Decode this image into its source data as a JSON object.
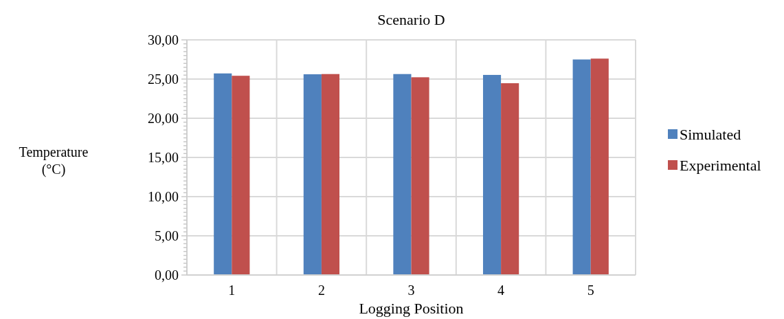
{
  "chart_data": {
    "type": "bar",
    "title": "Scenario D",
    "xlabel": "Logging Position",
    "ylabel": "Temperature (°C)",
    "categories": [
      "1",
      "2",
      "3",
      "4",
      "5"
    ],
    "series": [
      {
        "name": "Simulated",
        "color": "#4f81bd",
        "values": [
          25.72,
          25.61,
          25.64,
          25.53,
          27.5
        ]
      },
      {
        "name": "Experimental",
        "color": "#c0504d",
        "values": [
          25.42,
          25.64,
          25.23,
          24.47,
          27.61
        ]
      }
    ],
    "ylim": [
      0,
      30
    ],
    "yticks": [
      {
        "value": 0,
        "label": "0,00"
      },
      {
        "value": 0.5,
        "label": null
      },
      {
        "value": 1,
        "label": null
      },
      {
        "value": 1.5,
        "label": null
      },
      {
        "value": 2,
        "label": null
      },
      {
        "value": 2.5,
        "label": null
      },
      {
        "value": 3,
        "label": null
      },
      {
        "value": 3.5,
        "label": null
      },
      {
        "value": 4,
        "label": null
      },
      {
        "value": 4.5,
        "label": null
      },
      {
        "value": 5,
        "label": "5,00"
      },
      {
        "value": 5.5,
        "label": null
      },
      {
        "value": 6,
        "label": null
      },
      {
        "value": 6.5,
        "label": null
      },
      {
        "value": 7,
        "label": null
      },
      {
        "value": 7.5,
        "label": null
      },
      {
        "value": 8,
        "label": null
      },
      {
        "value": 8.5,
        "label": null
      },
      {
        "value": 9,
        "label": null
      },
      {
        "value": 9.5,
        "label": null
      },
      {
        "value": 10,
        "label": "10,00"
      },
      {
        "value": 10.5,
        "label": null
      },
      {
        "value": 11,
        "label": null
      },
      {
        "value": 11.5,
        "label": null
      },
      {
        "value": 12,
        "label": null
      },
      {
        "value": 12.5,
        "label": null
      },
      {
        "value": 13,
        "label": null
      },
      {
        "value": 13.5,
        "label": null
      },
      {
        "value": 14,
        "label": null
      },
      {
        "value": 14.5,
        "label": null
      },
      {
        "value": 15,
        "label": "15,00"
      },
      {
        "value": 15.5,
        "label": null
      },
      {
        "value": 16,
        "label": null
      },
      {
        "value": 16.5,
        "label": null
      },
      {
        "value": 17,
        "label": null
      },
      {
        "value": 17.5,
        "label": null
      },
      {
        "value": 18,
        "label": null
      },
      {
        "value": 18.5,
        "label": null
      },
      {
        "value": 19,
        "label": null
      },
      {
        "value": 19.5,
        "label": null
      },
      {
        "value": 20,
        "label": "20,00"
      },
      {
        "value": 20.5,
        "label": null
      },
      {
        "value": 21,
        "label": null
      },
      {
        "value": 21.5,
        "label": null
      },
      {
        "value": 22,
        "label": null
      },
      {
        "value": 22.5,
        "label": null
      },
      {
        "value": 23,
        "label": null
      },
      {
        "value": 23.5,
        "label": null
      },
      {
        "value": 24,
        "label": null
      },
      {
        "value": 24.5,
        "label": null
      },
      {
        "value": 25,
        "label": "25,00"
      },
      {
        "value": 25.5,
        "label": null
      },
      {
        "value": 26,
        "label": null
      },
      {
        "value": 26.5,
        "label": null
      },
      {
        "value": 27,
        "label": null
      },
      {
        "value": 27.5,
        "label": null
      },
      {
        "value": 28,
        "label": null
      },
      {
        "value": 28.5,
        "label": null
      },
      {
        "value": 29,
        "label": null
      },
      {
        "value": 29.5,
        "label": null
      },
      {
        "value": 30,
        "label": "30,00"
      }
    ],
    "grid": true,
    "legend": "right"
  }
}
